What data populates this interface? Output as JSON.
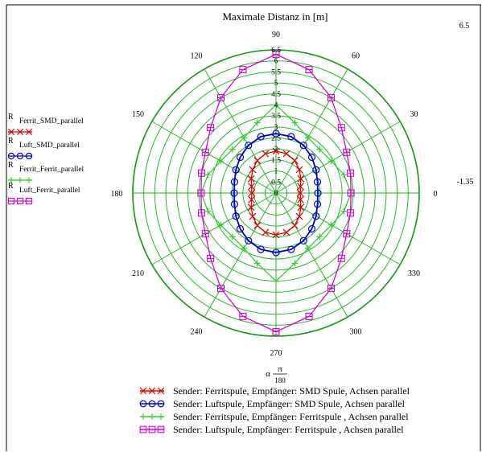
{
  "chart_data": {
    "type": "polar",
    "title": "Maximale Distanz in [m]",
    "r_max_label": "6.5",
    "r_min_label": "-1.35",
    "r_ticks": [
      "0",
      "0.5",
      "1",
      "1.5",
      "2",
      "2.5",
      "3",
      "3.5",
      "4",
      "4.5",
      "5",
      "5.5",
      "6",
      "6.5"
    ],
    "r_range": [
      0,
      6.5
    ],
    "angle_ticks": [
      "0",
      "30",
      "60",
      "90",
      "120",
      "150",
      "180",
      "210",
      "240",
      "270",
      "300",
      "330"
    ],
    "angle_axis_label_prefix": "α",
    "angle_axis_label_num": "π",
    "angle_axis_label_den": "180",
    "grid": true,
    "legend_position": "bottom",
    "series": [
      {
        "name": "Sender: Ferritspule, Empfänger: SMD Spule, Achsen parallel",
        "left_label_main": "R",
        "left_label_sub": "Ferrit_SMD_parallel",
        "color": "#e00000",
        "marker": "x",
        "angles_deg": [
          0,
          15,
          30,
          45,
          60,
          75,
          90,
          105,
          120,
          135,
          150,
          165,
          180,
          195,
          210,
          225,
          240,
          255,
          270,
          285,
          300,
          315,
          330,
          345
        ],
        "values": [
          1.1,
          1.15,
          1.3,
          1.5,
          1.7,
          1.85,
          1.9,
          1.85,
          1.7,
          1.5,
          1.3,
          1.15,
          1.1,
          1.15,
          1.3,
          1.5,
          1.7,
          1.85,
          1.9,
          1.85,
          1.7,
          1.5,
          1.3,
          1.15
        ]
      },
      {
        "name": "Sender: Luftspule, Empfänger: SMD Spule, Achsen parallel",
        "left_label_main": "R",
        "left_label_sub": "Luft_SMD_parallel",
        "color": "#0000cc",
        "marker": "o",
        "angles_deg": [
          0,
          15,
          30,
          45,
          60,
          75,
          90,
          105,
          120,
          135,
          150,
          165,
          180,
          195,
          210,
          225,
          240,
          255,
          270,
          285,
          300,
          315,
          330,
          345
        ],
        "values": [
          1.9,
          1.95,
          2.1,
          2.3,
          2.5,
          2.65,
          2.7,
          2.65,
          2.5,
          2.3,
          2.1,
          1.95,
          1.9,
          1.95,
          2.1,
          2.3,
          2.5,
          2.65,
          2.7,
          2.65,
          2.5,
          2.3,
          2.1,
          1.95
        ]
      },
      {
        "name": "Sender: Ferritspule, Empfänger:  Ferritspule , Achsen parallel",
        "left_label_main": "R",
        "left_label_sub": "Ferrit_Ferrit_parallel",
        "color": "#33cc33",
        "marker": "+",
        "angles_deg": [
          0,
          15,
          30,
          45,
          60,
          75,
          90,
          105,
          120,
          135,
          150,
          165,
          180,
          195,
          210,
          225,
          240,
          255,
          270,
          285,
          300,
          315,
          330,
          345
        ],
        "values": [
          3.4,
          3.2,
          2.9,
          2.8,
          2.9,
          3.3,
          4.0,
          3.3,
          2.9,
          2.8,
          2.9,
          3.2,
          3.4,
          3.2,
          2.9,
          2.8,
          2.9,
          3.3,
          4.0,
          3.3,
          2.9,
          2.8,
          2.9,
          3.2
        ]
      },
      {
        "name": "Sender: Luftspule, Empfänger:  Ferritspule , Achsen parallel",
        "left_label_main": "R",
        "left_label_sub": "Luft_Ferrit_parallel",
        "color": "#dd00dd",
        "marker": "sq",
        "angles_deg": [
          0,
          15,
          30,
          45,
          60,
          75,
          90,
          105,
          120,
          135,
          150,
          165,
          180,
          195,
          210,
          225,
          240,
          255,
          270,
          285,
          300,
          315,
          330,
          345
        ],
        "values": [
          3.4,
          3.5,
          3.7,
          4.2,
          5.0,
          5.8,
          6.3,
          5.8,
          5.0,
          4.2,
          3.7,
          3.5,
          3.4,
          3.5,
          3.7,
          4.2,
          5.0,
          5.8,
          6.3,
          5.8,
          5.0,
          4.2,
          3.7,
          3.5
        ]
      }
    ]
  }
}
